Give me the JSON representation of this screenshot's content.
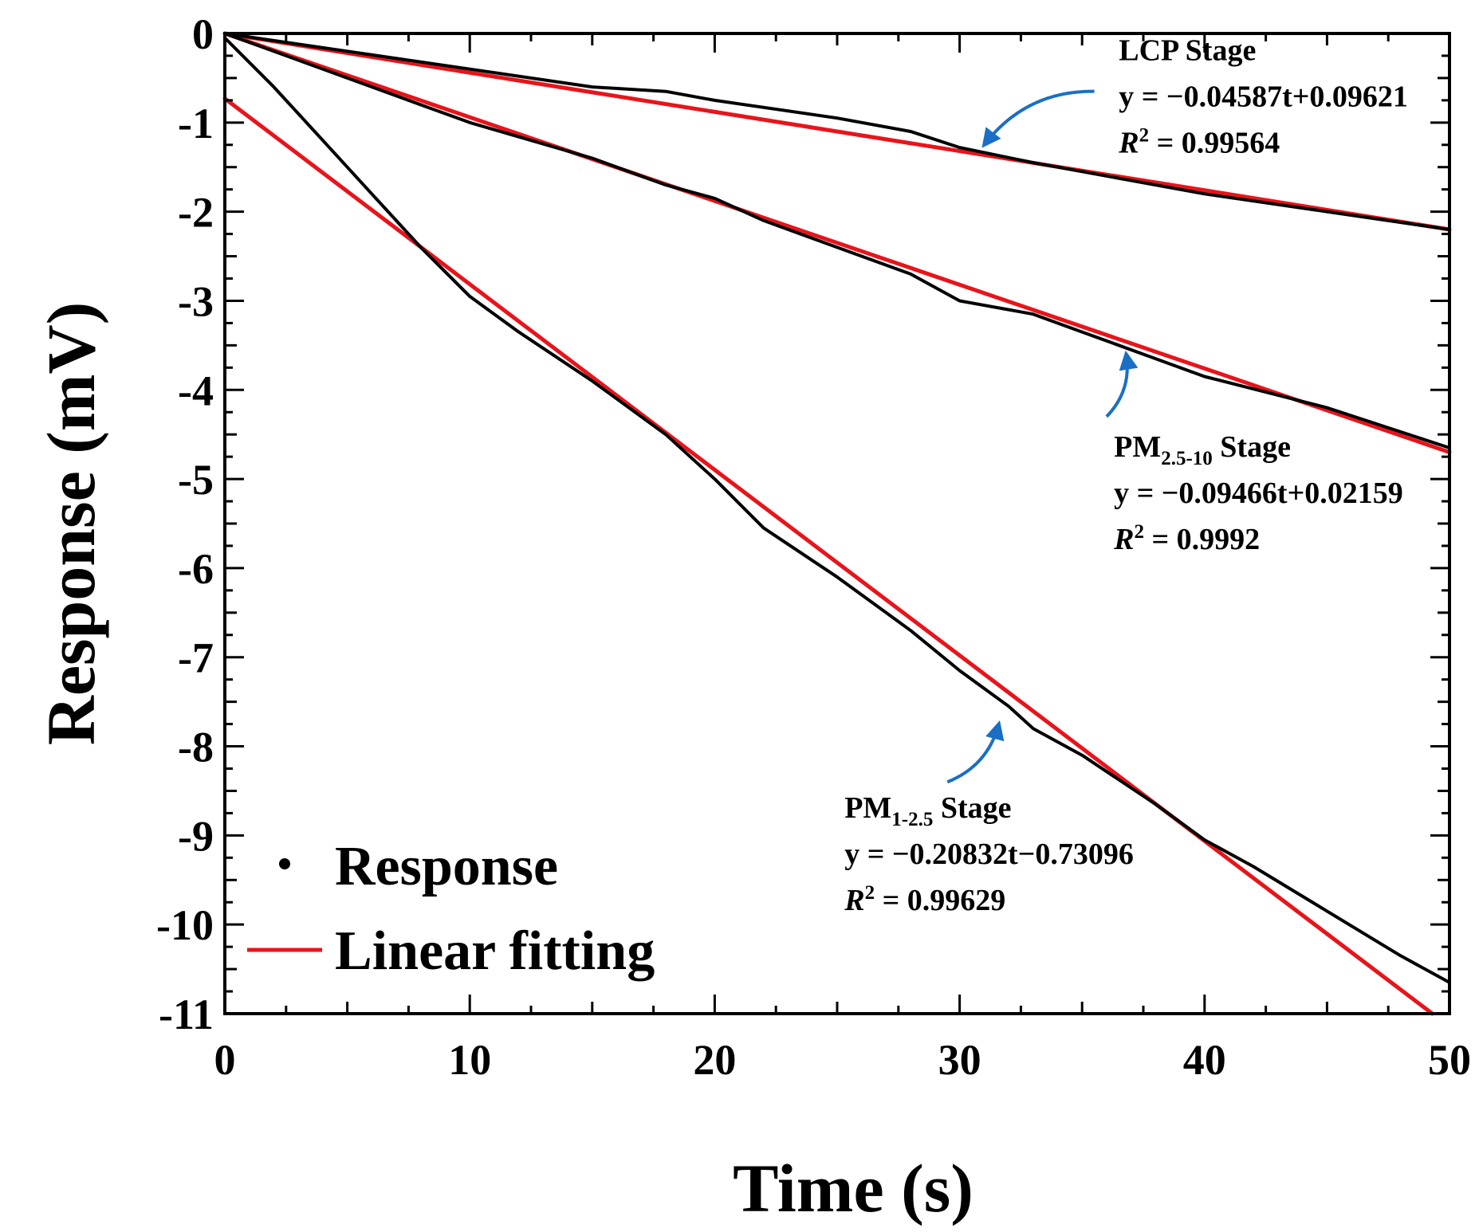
{
  "chart_data": {
    "type": "line",
    "xlabel": "Time (s)",
    "ylabel": "Response (mV)",
    "xlim": [
      0,
      50
    ],
    "ylim": [
      -11,
      0
    ],
    "xticks": [
      0,
      10,
      20,
      30,
      40,
      50
    ],
    "yticks": [
      0,
      -1,
      -2,
      -3,
      -4,
      -5,
      -6,
      -7,
      -8,
      -9,
      -10,
      -11
    ],
    "legend": {
      "position": "bottom-left",
      "entries": [
        "Response",
        "Linear fitting"
      ]
    },
    "colors": {
      "response": "#000000",
      "fit": "#e8141b",
      "arrow": "#1a6fc4"
    },
    "series": [
      {
        "name": "Response (LCP stage)",
        "kind": "response",
        "points": [
          [
            0,
            0
          ],
          [
            5,
            -0.2
          ],
          [
            10,
            -0.4
          ],
          [
            15,
            -0.6
          ],
          [
            18,
            -0.65
          ],
          [
            20,
            -0.75
          ],
          [
            25,
            -0.95
          ],
          [
            28,
            -1.1
          ],
          [
            30,
            -1.28
          ],
          [
            33,
            -1.45
          ],
          [
            35,
            -1.55
          ],
          [
            40,
            -1.8
          ],
          [
            45,
            -2.0
          ],
          [
            50,
            -2.2
          ]
        ]
      },
      {
        "name": "Response (PM2.5-10 stage)",
        "kind": "response",
        "points": [
          [
            0,
            0
          ],
          [
            3,
            -0.3
          ],
          [
            5,
            -0.5
          ],
          [
            8,
            -0.8
          ],
          [
            10,
            -1.0
          ],
          [
            15,
            -1.4
          ],
          [
            18,
            -1.7
          ],
          [
            20,
            -1.85
          ],
          [
            22,
            -2.1
          ],
          [
            25,
            -2.4
          ],
          [
            28,
            -2.7
          ],
          [
            30,
            -3.0
          ],
          [
            33,
            -3.15
          ],
          [
            35,
            -3.35
          ],
          [
            38,
            -3.65
          ],
          [
            40,
            -3.85
          ],
          [
            45,
            -4.2
          ],
          [
            50,
            -4.65
          ]
        ]
      },
      {
        "name": "Response (PM1-2.5 stage)",
        "kind": "response",
        "points": [
          [
            0,
            -0.05
          ],
          [
            2,
            -0.6
          ],
          [
            4,
            -1.2
          ],
          [
            6,
            -1.8
          ],
          [
            8,
            -2.4
          ],
          [
            10,
            -2.95
          ],
          [
            12,
            -3.35
          ],
          [
            15,
            -3.9
          ],
          [
            18,
            -4.5
          ],
          [
            20,
            -5.0
          ],
          [
            22,
            -5.55
          ],
          [
            25,
            -6.1
          ],
          [
            28,
            -6.7
          ],
          [
            30,
            -7.15
          ],
          [
            32,
            -7.55
          ],
          [
            33,
            -7.8
          ],
          [
            35,
            -8.1
          ],
          [
            38,
            -8.65
          ],
          [
            40,
            -9.05
          ],
          [
            42,
            -9.35
          ],
          [
            45,
            -9.85
          ],
          [
            48,
            -10.35
          ],
          [
            50,
            -10.65
          ]
        ]
      },
      {
        "name": "Linear fitting (LCP)",
        "kind": "fit",
        "slope": -0.04587,
        "intercept": 0.09621,
        "points": [
          [
            0,
            0
          ],
          [
            50,
            -2.2
          ]
        ]
      },
      {
        "name": "Linear fitting (PM2.5-10)",
        "kind": "fit",
        "slope": -0.09466,
        "intercept": 0.02159,
        "points": [
          [
            0,
            0
          ],
          [
            50,
            -4.7
          ]
        ]
      },
      {
        "name": "Linear fitting (PM1-2.5)",
        "kind": "fit",
        "slope": -0.20832,
        "intercept": -0.73096,
        "points": [
          [
            0,
            -0.73096
          ],
          [
            49.3,
            -11
          ]
        ]
      }
    ],
    "annotations": [
      {
        "id": "lcp",
        "stage": {
          "main": "LCP Stage",
          "sub": ""
        },
        "equation": "y = −0.04587t+0.09621",
        "r2_value": " = 0.99564",
        "text_at": [
          36.5,
          -0.3
        ],
        "arrow_from": [
          35.5,
          -0.65
        ],
        "arrow_to": [
          31,
          -1.25
        ]
      },
      {
        "id": "pm25_10",
        "stage": {
          "main": "PM",
          "sub": "2.5-10",
          "suffix": " Stage"
        },
        "equation": "y = −0.09466t+0.02159",
        "r2_value": " = 0.9992",
        "text_at": [
          36.3,
          -4.75
        ],
        "arrow_from": [
          36.0,
          -4.3
        ],
        "arrow_to": [
          36.8,
          -3.6
        ]
      },
      {
        "id": "pm1_25",
        "stage": {
          "main": "PM",
          "sub": "1-2.5",
          "suffix": " Stage"
        },
        "equation": "y = −0.20832t−0.73096",
        "r2_value": " = 0.99629",
        "text_at": [
          25.3,
          -8.8
        ],
        "arrow_from": [
          29.5,
          -8.4
        ],
        "arrow_to": [
          31.6,
          -7.75
        ]
      }
    ]
  }
}
